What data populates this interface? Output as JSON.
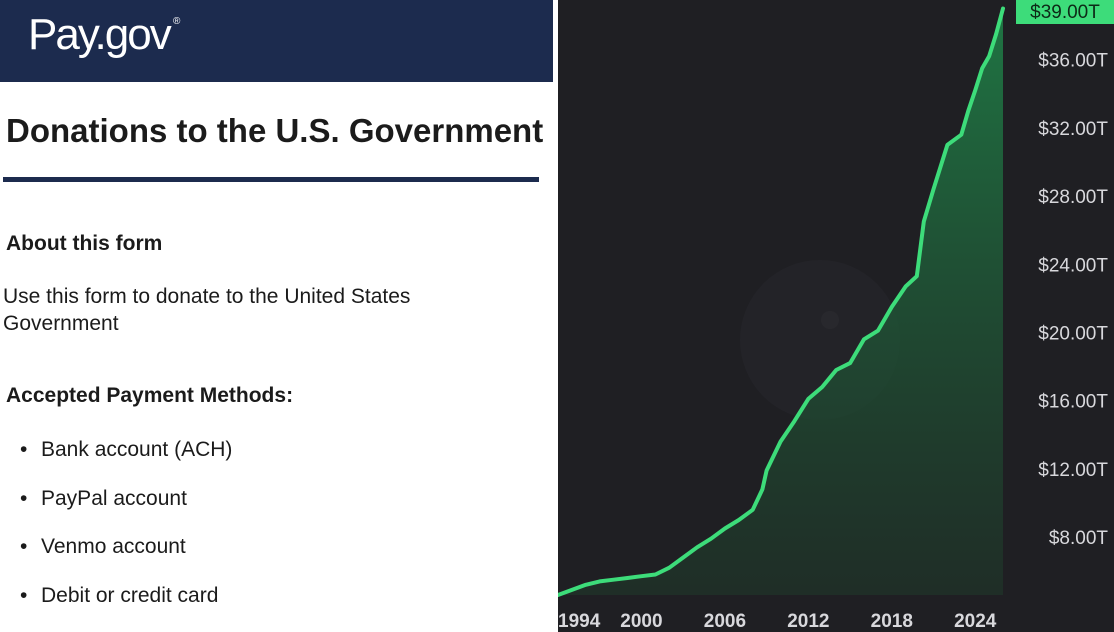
{
  "header": {
    "logo_text": "Pay.gov",
    "logo_mark": "®"
  },
  "form": {
    "title": "Donations to the U.S. Government",
    "about_heading": "About this form",
    "about_text": "Use this form to donate to the United States Government",
    "methods_heading": "Accepted Payment Methods:",
    "methods": [
      "Bank account (ACH)",
      "PayPal account",
      "Venmo account",
      "Debit or credit card"
    ]
  },
  "colors": {
    "header_bg": "#1c2b4e",
    "chart_bg": "#1f1f23",
    "line": "#3ddc7a",
    "badge": "#3ddc7a"
  },
  "chart_data": {
    "type": "area",
    "title": "",
    "xlabel": "",
    "ylabel": "",
    "x_ticks": [
      "1994",
      "2000",
      "2006",
      "2012",
      "2018",
      "2024"
    ],
    "x_tick_values": [
      1994,
      2000,
      2006,
      2012,
      2018,
      2024
    ],
    "y_ticks": [
      "$8.00T",
      "$12.00T",
      "$16.00T",
      "$20.00T",
      "$24.00T",
      "$28.00T",
      "$32.00T",
      "$36.00T"
    ],
    "y_tick_values": [
      8,
      12,
      16,
      20,
      24,
      28,
      32,
      36
    ],
    "ylim": [
      4.6,
      39.5
    ],
    "xlim": [
      1994,
      2026.5
    ],
    "current_value_label": "$39.00T",
    "current_value": 39,
    "grid": false,
    "series": [
      {
        "x": [
          1994,
          1995,
          1996,
          1997,
          1998,
          1999,
          2000,
          2001,
          2002,
          2003,
          2004,
          2005,
          2006,
          2007,
          2008,
          2008.7,
          2009,
          2010,
          2011,
          2012,
          2013,
          2014,
          2015,
          2016,
          2017,
          2018,
          2019,
          2019.8,
          2020.3,
          2021,
          2022,
          2023,
          2023.5,
          2024,
          2024.5,
          2025,
          2025.5,
          2026
        ],
        "y": [
          4.6,
          4.9,
          5.2,
          5.4,
          5.5,
          5.6,
          5.7,
          5.8,
          6.2,
          6.8,
          7.4,
          7.9,
          8.5,
          9.0,
          9.6,
          10.8,
          11.9,
          13.6,
          14.8,
          16.1,
          16.8,
          17.8,
          18.2,
          19.6,
          20.1,
          21.5,
          22.7,
          23.3,
          26.5,
          28.4,
          31.0,
          31.6,
          33.0,
          34.2,
          35.5,
          36.2,
          37.5,
          39.0
        ]
      }
    ]
  }
}
